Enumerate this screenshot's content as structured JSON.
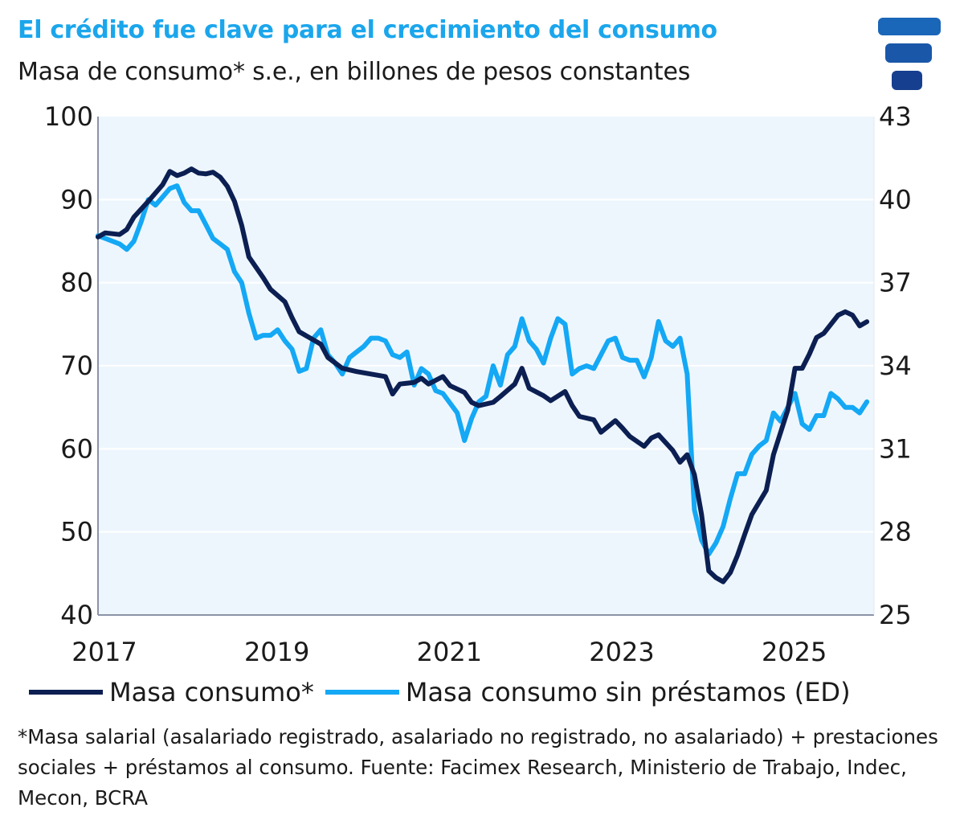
{
  "header": {
    "title": "El crédito fue clave para el crecimiento del consumo",
    "subtitle": "Masa de consumo* s.e., en billones de pesos constantes",
    "logo_icon": "facimex-logo-icon"
  },
  "footnote": "*Masa salarial (asalariado registrado, asalariado no registrado, no asalariado) + prestaciones sociales + préstamos al consumo. Fuente: Facimex Research, Ministerio de Trabajo, Indec, Mecon, BCRA",
  "chart_data": {
    "type": "line",
    "title": "El crédito fue clave para el crecimiento del consumo",
    "subtitle": "Masa de consumo* s.e., en billones de pesos constantes",
    "x_ticks": [
      "2017",
      "2019",
      "2021",
      "2023",
      "2025"
    ],
    "x_range": [
      "2017-01",
      "2026-01"
    ],
    "y_left": {
      "range": [
        40,
        100
      ],
      "ticks": [
        "100",
        "90",
        "80",
        "70",
        "60",
        "50",
        "40"
      ]
    },
    "y_right": {
      "range": [
        25,
        43
      ],
      "ticks": [
        "43",
        "40",
        "37",
        "34",
        "31",
        "28",
        "25"
      ]
    },
    "grid": true,
    "legend_position": "bottom",
    "series": [
      {
        "name": "Masa consumo*",
        "axis": "left",
        "color": "#0c1f52",
        "points": [
          [
            "2017-01",
            85.5
          ],
          [
            "2017-02",
            86.0
          ],
          [
            "2017-04",
            85.8
          ],
          [
            "2017-05",
            86.4
          ],
          [
            "2017-06",
            87.9
          ],
          [
            "2017-08",
            89.8
          ],
          [
            "2017-10",
            91.8
          ],
          [
            "2017-11",
            93.4
          ],
          [
            "2017-12",
            92.9
          ],
          [
            "2018-01",
            93.2
          ],
          [
            "2018-02",
            93.7
          ],
          [
            "2018-03",
            93.2
          ],
          [
            "2018-04",
            93.1
          ],
          [
            "2018-05",
            93.3
          ],
          [
            "2018-06",
            92.7
          ],
          [
            "2018-07",
            91.6
          ],
          [
            "2018-08",
            89.8
          ],
          [
            "2018-09",
            86.9
          ],
          [
            "2018-10",
            83.1
          ],
          [
            "2018-12",
            80.6
          ],
          [
            "2019-01",
            79.2
          ],
          [
            "2019-03",
            77.7
          ],
          [
            "2019-04",
            75.8
          ],
          [
            "2019-05",
            74.1
          ],
          [
            "2019-08",
            72.6
          ],
          [
            "2019-09",
            71.0
          ],
          [
            "2019-11",
            69.7
          ],
          [
            "2020-01",
            69.3
          ],
          [
            "2020-03",
            69.0
          ],
          [
            "2020-05",
            68.7
          ],
          [
            "2020-06",
            66.6
          ],
          [
            "2020-07",
            67.8
          ],
          [
            "2020-09",
            68.0
          ],
          [
            "2020-10",
            68.5
          ],
          [
            "2020-11",
            67.8
          ],
          [
            "2021-01",
            68.7
          ],
          [
            "2021-02",
            67.6
          ],
          [
            "2021-04",
            66.8
          ],
          [
            "2021-05",
            65.6
          ],
          [
            "2021-06",
            65.2
          ],
          [
            "2021-08",
            65.6
          ],
          [
            "2021-09",
            66.3
          ],
          [
            "2021-11",
            67.8
          ],
          [
            "2021-12",
            69.7
          ],
          [
            "2022-01",
            67.3
          ],
          [
            "2022-03",
            66.4
          ],
          [
            "2022-04",
            65.8
          ],
          [
            "2022-06",
            66.9
          ],
          [
            "2022-07",
            65.2
          ],
          [
            "2022-08",
            63.9
          ],
          [
            "2022-10",
            63.5
          ],
          [
            "2022-11",
            62.0
          ],
          [
            "2023-01",
            63.4
          ],
          [
            "2023-02",
            62.5
          ],
          [
            "2023-03",
            61.5
          ],
          [
            "2023-05",
            60.3
          ],
          [
            "2023-06",
            61.3
          ],
          [
            "2023-07",
            61.7
          ],
          [
            "2023-09",
            59.8
          ],
          [
            "2023-10",
            58.4
          ],
          [
            "2023-11",
            59.3
          ],
          [
            "2023-12",
            56.9
          ],
          [
            "2024-01",
            52.1
          ],
          [
            "2024-02",
            45.3
          ],
          [
            "2024-03",
            44.5
          ],
          [
            "2024-04",
            44.0
          ],
          [
            "2024-05",
            45.1
          ],
          [
            "2024-06",
            47.2
          ],
          [
            "2024-07",
            49.7
          ],
          [
            "2024-08",
            52.1
          ],
          [
            "2024-10",
            55.0
          ],
          [
            "2024-11",
            59.3
          ],
          [
            "2025-01",
            64.7
          ],
          [
            "2025-02",
            69.7
          ],
          [
            "2025-03",
            69.7
          ],
          [
            "2025-04",
            71.4
          ],
          [
            "2025-05",
            73.4
          ],
          [
            "2025-06",
            73.9
          ],
          [
            "2025-08",
            76.1
          ],
          [
            "2025-09",
            76.5
          ],
          [
            "2025-10",
            76.1
          ],
          [
            "2025-11",
            74.8
          ],
          [
            "2025-12",
            75.3
          ]
        ]
      },
      {
        "name": "Masa consumo sin préstamos (ED)",
        "axis": "right",
        "color": "#14a8f5",
        "points": [
          [
            "2017-01",
            38.7
          ],
          [
            "2017-04",
            38.4
          ],
          [
            "2017-05",
            38.2
          ],
          [
            "2017-06",
            38.5
          ],
          [
            "2017-07",
            39.2
          ],
          [
            "2017-08",
            40.0
          ],
          [
            "2017-09",
            39.8
          ],
          [
            "2017-10",
            40.1
          ],
          [
            "2017-11",
            40.4
          ],
          [
            "2017-12",
            40.5
          ],
          [
            "2018-01",
            39.9
          ],
          [
            "2018-02",
            39.6
          ],
          [
            "2018-03",
            39.6
          ],
          [
            "2018-04",
            39.1
          ],
          [
            "2018-05",
            38.6
          ],
          [
            "2018-06",
            38.4
          ],
          [
            "2018-07",
            38.2
          ],
          [
            "2018-08",
            37.4
          ],
          [
            "2018-09",
            37.0
          ],
          [
            "2018-10",
            35.9
          ],
          [
            "2018-11",
            35.0
          ],
          [
            "2018-12",
            35.1
          ],
          [
            "2019-01",
            35.1
          ],
          [
            "2019-02",
            35.3
          ],
          [
            "2019-03",
            34.9
          ],
          [
            "2019-04",
            34.6
          ],
          [
            "2019-05",
            33.8
          ],
          [
            "2019-06",
            33.9
          ],
          [
            "2019-07",
            35.0
          ],
          [
            "2019-08",
            35.3
          ],
          [
            "2019-09",
            34.4
          ],
          [
            "2019-10",
            34.1
          ],
          [
            "2019-11",
            33.7
          ],
          [
            "2019-12",
            34.3
          ],
          [
            "2020-01",
            34.5
          ],
          [
            "2020-02",
            34.7
          ],
          [
            "2020-03",
            35.0
          ],
          [
            "2020-04",
            35.0
          ],
          [
            "2020-05",
            34.9
          ],
          [
            "2020-06",
            34.4
          ],
          [
            "2020-07",
            34.3
          ],
          [
            "2020-08",
            34.5
          ],
          [
            "2020-09",
            33.3
          ],
          [
            "2020-10",
            33.9
          ],
          [
            "2020-11",
            33.7
          ],
          [
            "2020-12",
            33.1
          ],
          [
            "2021-01",
            33.0
          ],
          [
            "2021-03",
            32.3
          ],
          [
            "2021-04",
            31.3
          ],
          [
            "2021-05",
            32.1
          ],
          [
            "2021-06",
            32.7
          ],
          [
            "2021-07",
            32.9
          ],
          [
            "2021-08",
            34.0
          ],
          [
            "2021-09",
            33.3
          ],
          [
            "2021-10",
            34.4
          ],
          [
            "2021-11",
            34.7
          ],
          [
            "2021-12",
            35.7
          ],
          [
            "2022-01",
            34.9
          ],
          [
            "2022-02",
            34.6
          ],
          [
            "2022-03",
            34.1
          ],
          [
            "2022-04",
            35.0
          ],
          [
            "2022-05",
            35.7
          ],
          [
            "2022-06",
            35.5
          ],
          [
            "2022-07",
            33.7
          ],
          [
            "2022-08",
            33.9
          ],
          [
            "2022-09",
            34.0
          ],
          [
            "2022-10",
            33.9
          ],
          [
            "2022-12",
            34.9
          ],
          [
            "2023-01",
            35.0
          ],
          [
            "2023-02",
            34.3
          ],
          [
            "2023-03",
            34.2
          ],
          [
            "2023-04",
            34.2
          ],
          [
            "2023-05",
            33.6
          ],
          [
            "2023-06",
            34.3
          ],
          [
            "2023-07",
            35.6
          ],
          [
            "2023-08",
            34.9
          ],
          [
            "2023-09",
            34.7
          ],
          [
            "2023-10",
            35.0
          ],
          [
            "2023-11",
            33.7
          ],
          [
            "2023-12",
            28.8
          ],
          [
            "2024-01",
            27.7
          ],
          [
            "2024-02",
            27.2
          ],
          [
            "2024-03",
            27.6
          ],
          [
            "2024-04",
            28.2
          ],
          [
            "2024-05",
            29.2
          ],
          [
            "2024-06",
            30.1
          ],
          [
            "2024-07",
            30.1
          ],
          [
            "2024-08",
            30.8
          ],
          [
            "2024-09",
            31.1
          ],
          [
            "2024-10",
            31.3
          ],
          [
            "2024-11",
            32.3
          ],
          [
            "2024-12",
            32.0
          ],
          [
            "2025-02",
            33.0
          ],
          [
            "2025-03",
            31.9
          ],
          [
            "2025-04",
            31.7
          ],
          [
            "2025-05",
            32.2
          ],
          [
            "2025-06",
            32.2
          ],
          [
            "2025-07",
            33.0
          ],
          [
            "2025-08",
            32.8
          ],
          [
            "2025-09",
            32.5
          ],
          [
            "2025-10",
            32.5
          ],
          [
            "2025-11",
            32.3
          ],
          [
            "2025-12",
            32.7
          ]
        ]
      }
    ]
  }
}
